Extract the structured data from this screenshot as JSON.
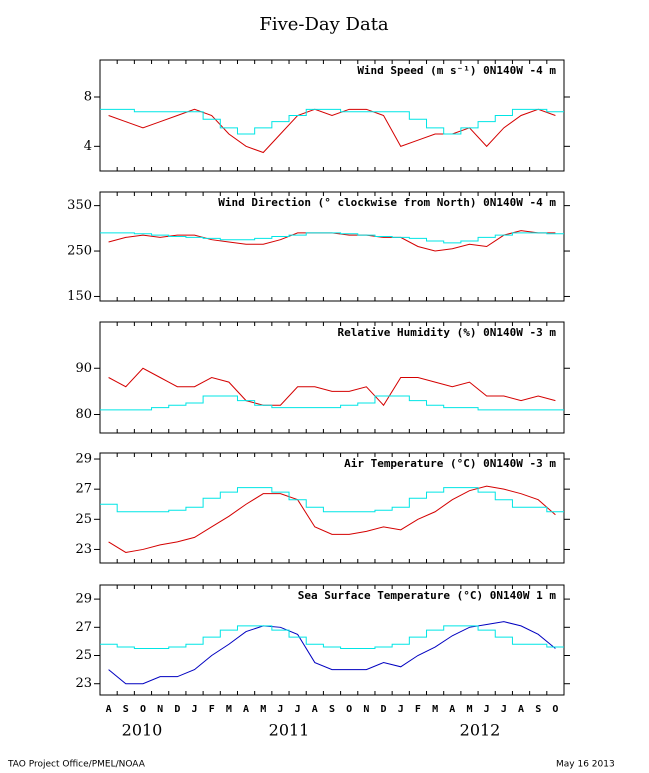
{
  "page": {
    "title": "Five-Day Data",
    "credit": "TAO Project Office/PMEL/NOAA",
    "date": "May 16 2013"
  },
  "months": [
    "A",
    "S",
    "O",
    "N",
    "D",
    "J",
    "F",
    "M",
    "A",
    "M",
    "J",
    "J",
    "A",
    "S",
    "O",
    "N",
    "D",
    "J",
    "F",
    "M",
    "A",
    "M",
    "J",
    "J",
    "A",
    "S",
    "O"
  ],
  "years": [
    "2010",
    "2011",
    "2012"
  ],
  "chart_data": [
    {
      "type": "line",
      "title": "Wind Speed (m s⁻¹) 0N140W  -4 m",
      "ylim": [
        2,
        11
      ],
      "yticks": [
        4,
        8
      ],
      "series": [
        {
          "color": "#d40000",
          "values": [
            6.5,
            6,
            5.5,
            6,
            6.5,
            7,
            6.5,
            5,
            4,
            3.5,
            5,
            6.5,
            7,
            6.5,
            7,
            7,
            6.5,
            4,
            4.5,
            5,
            5,
            5.5,
            4,
            5.5,
            6.5,
            7,
            6.5
          ]
        },
        {
          "color": "#00e5e5",
          "style": "step",
          "values": [
            7,
            7,
            6.8,
            6.8,
            6.8,
            6.8,
            6.2,
            5.5,
            5,
            5.5,
            6,
            6.5,
            7,
            7,
            6.8,
            6.8,
            6.8,
            6.8,
            6.2,
            5.5,
            5,
            5.5,
            6,
            6.5,
            7,
            7,
            6.8
          ]
        }
      ]
    },
    {
      "type": "line",
      "title": "Wind Direction (° clockwise from North) 0N140W  -4 m",
      "ylim": [
        140,
        380
      ],
      "yticks": [
        150,
        250,
        350
      ],
      "series": [
        {
          "color": "#d40000",
          "values": [
            270,
            280,
            285,
            280,
            285,
            285,
            275,
            270,
            265,
            265,
            275,
            290,
            290,
            290,
            285,
            285,
            280,
            280,
            260,
            250,
            255,
            265,
            260,
            285,
            295,
            290,
            290
          ]
        },
        {
          "color": "#00e5e5",
          "style": "step",
          "values": [
            290,
            290,
            288,
            285,
            282,
            280,
            278,
            275,
            275,
            278,
            282,
            285,
            290,
            290,
            288,
            285,
            282,
            280,
            278,
            272,
            268,
            272,
            280,
            285,
            290,
            290,
            288
          ]
        }
      ]
    },
    {
      "type": "line",
      "title": "Relative Humidity (%) 0N140W  -3 m",
      "ylim": [
        76,
        100
      ],
      "yticks": [
        80,
        90
      ],
      "series": [
        {
          "color": "#d40000",
          "values": [
            88,
            86,
            90,
            88,
            86,
            86,
            88,
            87,
            83,
            82,
            82,
            86,
            86,
            85,
            85,
            86,
            82,
            88,
            88,
            87,
            86,
            87,
            84,
            84,
            83,
            84,
            83
          ]
        },
        {
          "color": "#00e5e5",
          "style": "step",
          "values": [
            81,
            81,
            81,
            81.5,
            82,
            82.5,
            84,
            84,
            83,
            82,
            81.5,
            81.5,
            81.5,
            81.5,
            82,
            82.5,
            84,
            84,
            83,
            82,
            81.5,
            81.5,
            81,
            81,
            81,
            81,
            81
          ]
        }
      ]
    },
    {
      "type": "line",
      "title": "Air Temperature (°C) 0N140W  -3 m",
      "ylim": [
        22.1,
        29.4
      ],
      "yticks": [
        23,
        25,
        27,
        29
      ],
      "series": [
        {
          "color": "#d40000",
          "values": [
            23.5,
            22.8,
            23,
            23.3,
            23.5,
            23.8,
            24.5,
            25.2,
            26,
            26.7,
            26.7,
            26.3,
            24.5,
            24,
            24,
            24.2,
            24.5,
            24.3,
            25,
            25.5,
            26.3,
            26.9,
            27.2,
            27,
            26.7,
            26.3,
            25.3
          ]
        },
        {
          "color": "#00e5e5",
          "style": "step",
          "values": [
            26,
            25.5,
            25.5,
            25.5,
            25.6,
            25.8,
            26.4,
            26.8,
            27.1,
            27.1,
            26.8,
            26.3,
            25.8,
            25.5,
            25.5,
            25.5,
            25.6,
            25.8,
            26.4,
            26.8,
            27.1,
            27.1,
            26.8,
            26.3,
            25.8,
            25.8,
            25.5
          ]
        }
      ]
    },
    {
      "type": "line",
      "title": "Sea Surface Temperature (°C) 0N140W  1 m",
      "ylim": [
        22.2,
        30
      ],
      "yticks": [
        23,
        25,
        27,
        29
      ],
      "series": [
        {
          "color": "#0000c0",
          "values": [
            24,
            23,
            23,
            23.5,
            23.5,
            24,
            25,
            25.8,
            26.7,
            27.1,
            27,
            26.5,
            24.5,
            24,
            24,
            24,
            24.5,
            24.2,
            25,
            25.6,
            26.4,
            27,
            27.2,
            27.4,
            27.1,
            26.5,
            25.5
          ]
        },
        {
          "color": "#00e5e5",
          "style": "step",
          "values": [
            25.8,
            25.6,
            25.5,
            25.5,
            25.6,
            25.8,
            26.3,
            26.8,
            27.1,
            27.1,
            26.8,
            26.3,
            25.8,
            25.6,
            25.5,
            25.5,
            25.6,
            25.8,
            26.3,
            26.8,
            27.1,
            27.1,
            26.8,
            26.3,
            25.8,
            25.8,
            25.6
          ]
        }
      ]
    }
  ]
}
